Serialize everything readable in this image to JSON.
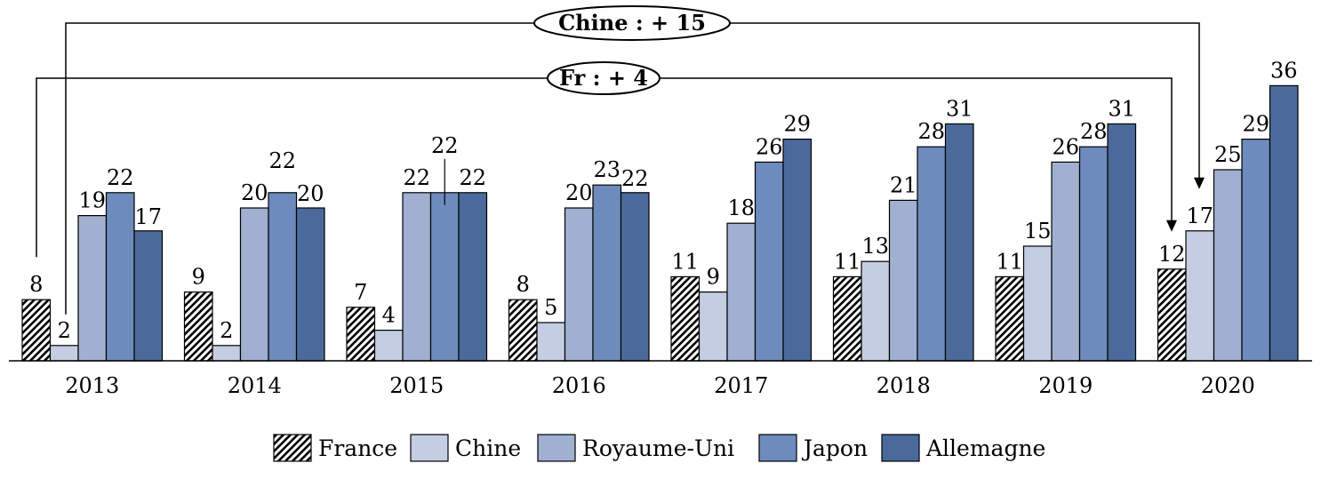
{
  "chart_data": {
    "type": "bar",
    "categories": [
      "2013",
      "2014",
      "2015",
      "2016",
      "2017",
      "2018",
      "2019",
      "2020"
    ],
    "series": [
      {
        "name": "France",
        "values": [
          8,
          9,
          7,
          8,
          11,
          11,
          11,
          12
        ],
        "color": "#ffffff",
        "pattern": "diagonal-hatch"
      },
      {
        "name": "Chine",
        "values": [
          2,
          2,
          4,
          5,
          9,
          13,
          15,
          17
        ],
        "color": "#c4cde1"
      },
      {
        "name": "Royaume-Uni",
        "values": [
          19,
          20,
          22,
          20,
          18,
          21,
          26,
          25
        ],
        "color": "#9fb0d0"
      },
      {
        "name": "Japon",
        "values": [
          22,
          22,
          22,
          23,
          26,
          28,
          28,
          29
        ],
        "color": "#6d8bbd"
      },
      {
        "name": "Allemagne",
        "values": [
          17,
          20,
          22,
          22,
          29,
          31,
          31,
          36
        ],
        "color": "#4b6a9c"
      }
    ],
    "ylim": [
      0,
      36
    ],
    "grid": false,
    "legend_position": "bottom",
    "annotations": [
      {
        "label": "Chine : + 15",
        "series": "Chine",
        "from": "2013",
        "to": "2020"
      },
      {
        "label": "Fr : + 4",
        "series": "France",
        "from": "2013",
        "to": "2020"
      }
    ]
  }
}
